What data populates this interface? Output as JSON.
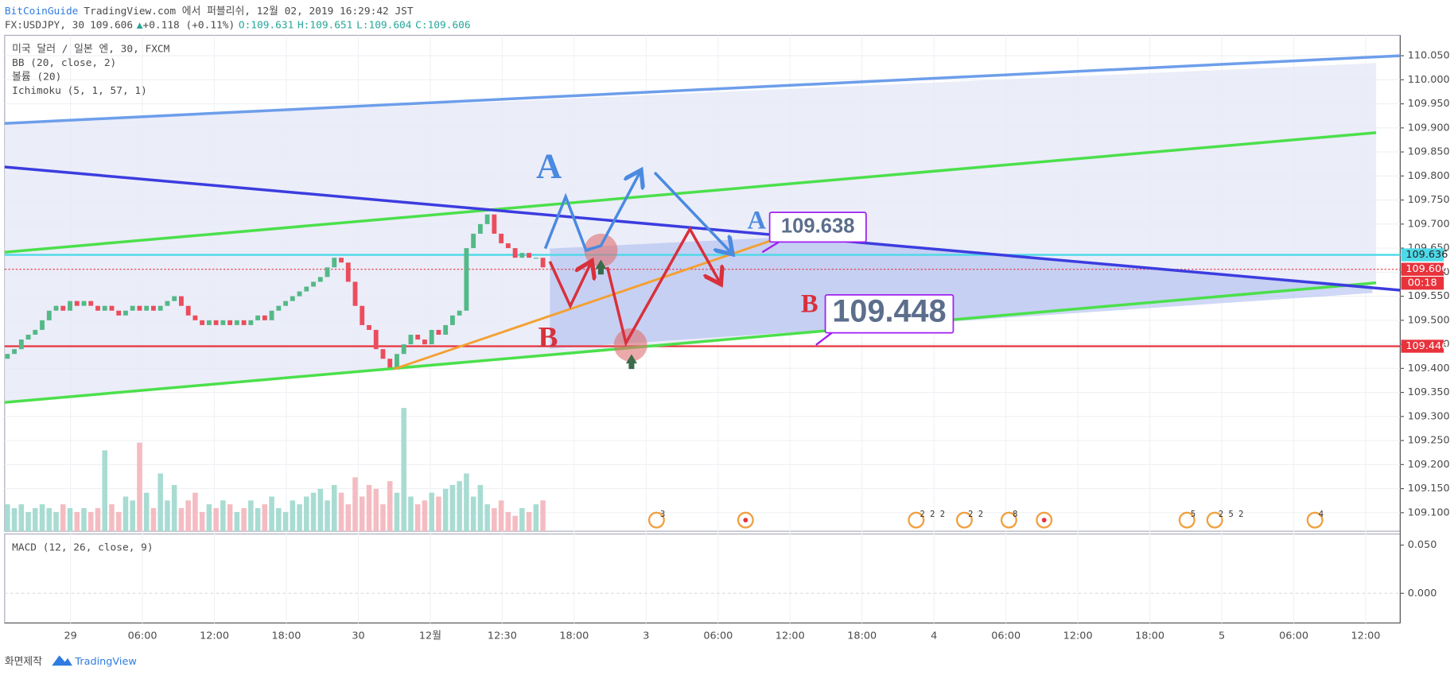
{
  "chart_data": {
    "type": "candlestick",
    "header": {
      "author": "BitCoinGuide",
      "published": "TradingView.com 에서 퍼블리쉬, 12월 02, 2019 16:29:42 JST",
      "symbol": "FX:USDJPY, 30",
      "price": "109.606",
      "change": "+0.118 (+0.11%)",
      "ohlc": [
        "O:109.631",
        "H:109.651",
        "L:109.604",
        "C:109.606"
      ]
    },
    "legend": [
      "미국 달러 / 일본 엔, 30, FXCM",
      "BB (20, close, 2)",
      "볼륨 (20)",
      "Ichimoku (5, 1, 57, 1)"
    ],
    "macd_label": "MACD (12, 26, close, 9)",
    "macd_ticks": [
      {
        "value": 0.05,
        "label": "0.050"
      },
      {
        "value": 0,
        "label": "0.000"
      }
    ],
    "x_labels": [
      "29",
      "06:00",
      "12:00",
      "18:00",
      "30",
      "12월",
      "12:30",
      "18:00",
      "3",
      "06:00",
      "12:00",
      "18:00",
      "4",
      "06:00",
      "12:00",
      "18:00",
      "5",
      "06:00",
      "12:00"
    ],
    "ylim": [
      109.05,
      110.1
    ],
    "yticks": [
      {
        "value": 110.05,
        "label": "110.050"
      },
      {
        "value": 110.0,
        "label": "110.000"
      },
      {
        "value": 109.95,
        "label": "109.950"
      },
      {
        "value": 109.9,
        "label": "109.900"
      },
      {
        "value": 109.85,
        "label": "109.850"
      },
      {
        "value": 109.8,
        "label": "109.800"
      },
      {
        "value": 109.75,
        "label": "109.750"
      },
      {
        "value": 109.7,
        "label": "109.700"
      },
      {
        "value": 109.65,
        "label": "109.650"
      },
      {
        "value": 109.6,
        "label": "109.600"
      },
      {
        "value": 109.55,
        "label": "109.550"
      },
      {
        "value": 109.5,
        "label": "109.500"
      },
      {
        "value": 109.45,
        "label": "109.450"
      },
      {
        "value": 109.4,
        "label": "109.400"
      },
      {
        "value": 109.35,
        "label": "109.350"
      },
      {
        "value": 109.3,
        "label": "109.300"
      },
      {
        "value": 109.25,
        "label": "109.250"
      },
      {
        "value": 109.2,
        "label": "109.200"
      },
      {
        "value": 109.15,
        "label": "109.150"
      },
      {
        "value": 109.1,
        "label": "109.100"
      }
    ],
    "open": [
      109.42,
      109.43,
      109.44,
      109.46,
      109.47,
      109.48,
      109.5,
      109.52,
      109.53,
      109.52,
      109.54,
      109.53,
      109.54,
      109.53,
      109.52,
      109.53,
      109.52,
      109.51,
      109.52,
      109.53,
      109.52,
      109.53,
      109.52,
      109.53,
      109.54,
      109.55,
      109.53,
      109.51,
      109.5,
      109.49,
      109.5,
      109.49,
      109.5,
      109.49,
      109.5,
      109.49,
      109.5,
      109.51,
      109.5,
      109.52,
      109.53,
      109.54,
      109.55,
      109.56,
      109.57,
      109.58,
      109.59,
      109.61,
      109.63,
      109.62,
      109.58,
      109.53,
      109.49,
      109.48,
      109.44,
      109.42,
      109.4,
      109.43,
      109.45,
      109.47,
      109.46,
      109.45,
      109.48,
      109.47,
      109.49,
      109.51,
      109.52,
      109.65,
      109.68,
      109.7,
      109.72,
      109.68,
      109.66,
      109.65,
      109.63,
      109.64,
      109.63,
      109.63
    ],
    "close": [
      109.43,
      109.44,
      109.46,
      109.47,
      109.48,
      109.5,
      109.52,
      109.53,
      109.52,
      109.54,
      109.53,
      109.54,
      109.53,
      109.52,
      109.53,
      109.52,
      109.51,
      109.52,
      109.53,
      109.52,
      109.53,
      109.52,
      109.53,
      109.54,
      109.55,
      109.53,
      109.51,
      109.5,
      109.49,
      109.5,
      109.49,
      109.5,
      109.49,
      109.5,
      109.49,
      109.5,
      109.51,
      109.5,
      109.52,
      109.53,
      109.54,
      109.55,
      109.56,
      109.57,
      109.58,
      109.59,
      109.61,
      109.63,
      109.62,
      109.58,
      109.53,
      109.49,
      109.48,
      109.44,
      109.42,
      109.4,
      109.43,
      109.45,
      109.47,
      109.46,
      109.45,
      109.48,
      109.47,
      109.49,
      109.51,
      109.52,
      109.65,
      109.68,
      109.7,
      109.72,
      109.68,
      109.66,
      109.65,
      109.63,
      109.64,
      109.63,
      109.63,
      109.61
    ],
    "volume": [
      7,
      6,
      7,
      5,
      6,
      7,
      6,
      5,
      7,
      6,
      5,
      6,
      5,
      6,
      21,
      7,
      5,
      9,
      8,
      23,
      10,
      6,
      15,
      8,
      12,
      6,
      8,
      10,
      5,
      7,
      6,
      8,
      7,
      5,
      6,
      8,
      6,
      7,
      9,
      6,
      5,
      8,
      7,
      9,
      10,
      11,
      8,
      12,
      10,
      7,
      14,
      9,
      12,
      11,
      7,
      13,
      10,
      32,
      9,
      7,
      8,
      10,
      9,
      11,
      12,
      13,
      15,
      9,
      12,
      7,
      6,
      8,
      5,
      4,
      6,
      5,
      7,
      8
    ],
    "up_color": "#53b987",
    "down_color": "#eb4d5c",
    "price_lines": [
      {
        "value": 109.636,
        "color": "#4dd9e8"
      },
      {
        "value": 109.606,
        "color": "#e8333c"
      },
      {
        "value": 109.446,
        "color": "#e8333c"
      }
    ],
    "countdown": "00:18",
    "annotations": {
      "a_big": "A",
      "b_big": "B",
      "a_small": "A",
      "b_small": "B",
      "box_a": "109.638",
      "box_b": "109.448"
    },
    "events": [
      "3",
      "2 2 2",
      "2 2",
      "8",
      "5",
      "2 5 2",
      "4"
    ],
    "footer": {
      "made": "화면제작",
      "brand": "TradingView"
    }
  }
}
